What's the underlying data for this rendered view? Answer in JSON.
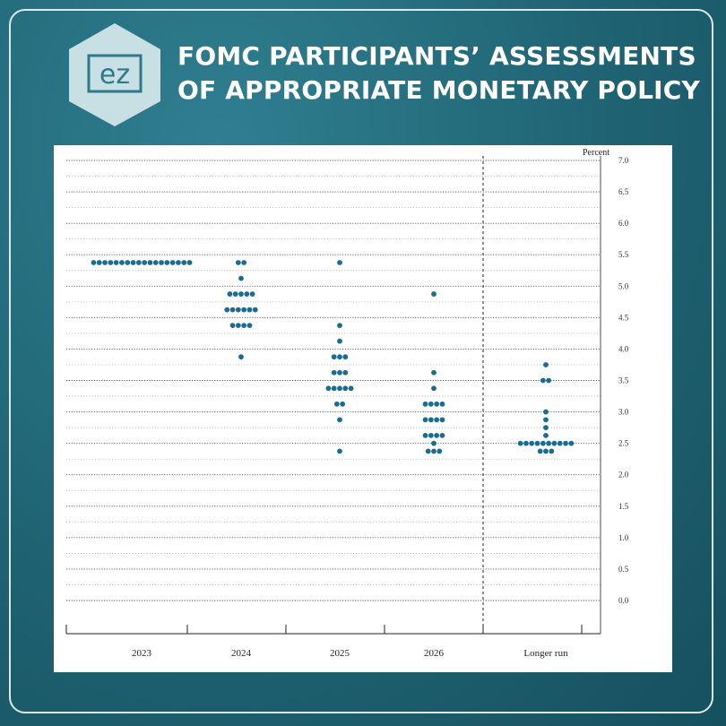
{
  "header": {
    "title_line1": "FOMC PARTICIPANTS’ ASSESSMENTS",
    "title_line2": "OF APPROPRIATE MONETARY POLICY",
    "logo_text": "ez"
  },
  "colors": {
    "background": "#1f6373",
    "dot": "#1a6c93",
    "logo_hex": "#d6e8ec"
  },
  "chart_data": {
    "type": "scatter",
    "unit_label": "Percent",
    "categories": [
      "2023",
      "2024",
      "2025",
      "2026",
      "Longer run"
    ],
    "yticks": [
      "0.0",
      "0.5",
      "1.0",
      "1.5",
      "2.0",
      "2.5",
      "3.0",
      "3.5",
      "4.0",
      "4.5",
      "5.0",
      "5.5",
      "6.0",
      "6.5",
      "7.0"
    ],
    "ylim": [
      0,
      7.0
    ],
    "grid": true,
    "series": [
      {
        "category": "2023",
        "points": [
          {
            "y": 5.375,
            "count": 18
          }
        ]
      },
      {
        "category": "2024",
        "points": [
          {
            "y": 5.375,
            "count": 2
          },
          {
            "y": 5.125,
            "count": 1
          },
          {
            "y": 4.875,
            "count": 5
          },
          {
            "y": 4.625,
            "count": 6
          },
          {
            "y": 4.375,
            "count": 4
          },
          {
            "y": 3.875,
            "count": 1
          }
        ]
      },
      {
        "category": "2025",
        "points": [
          {
            "y": 5.375,
            "count": 1
          },
          {
            "y": 4.375,
            "count": 1
          },
          {
            "y": 4.125,
            "count": 1
          },
          {
            "y": 3.875,
            "count": 3
          },
          {
            "y": 3.625,
            "count": 3
          },
          {
            "y": 3.375,
            "count": 5
          },
          {
            "y": 3.125,
            "count": 2
          },
          {
            "y": 2.875,
            "count": 1
          },
          {
            "y": 2.375,
            "count": 1
          }
        ]
      },
      {
        "category": "2026",
        "points": [
          {
            "y": 4.875,
            "count": 1
          },
          {
            "y": 3.625,
            "count": 1
          },
          {
            "y": 3.375,
            "count": 1
          },
          {
            "y": 3.125,
            "count": 4
          },
          {
            "y": 2.875,
            "count": 4
          },
          {
            "y": 2.625,
            "count": 4
          },
          {
            "y": 2.5,
            "count": 1
          },
          {
            "y": 2.375,
            "count": 3
          }
        ]
      },
      {
        "category": "Longer run",
        "points": [
          {
            "y": 3.75,
            "count": 1
          },
          {
            "y": 3.5,
            "count": 2
          },
          {
            "y": 3.0,
            "count": 1
          },
          {
            "y": 2.875,
            "count": 1
          },
          {
            "y": 2.75,
            "count": 1
          },
          {
            "y": 2.625,
            "count": 1
          },
          {
            "y": 2.5,
            "count": 10
          },
          {
            "y": 2.375,
            "count": 3
          }
        ]
      }
    ]
  }
}
